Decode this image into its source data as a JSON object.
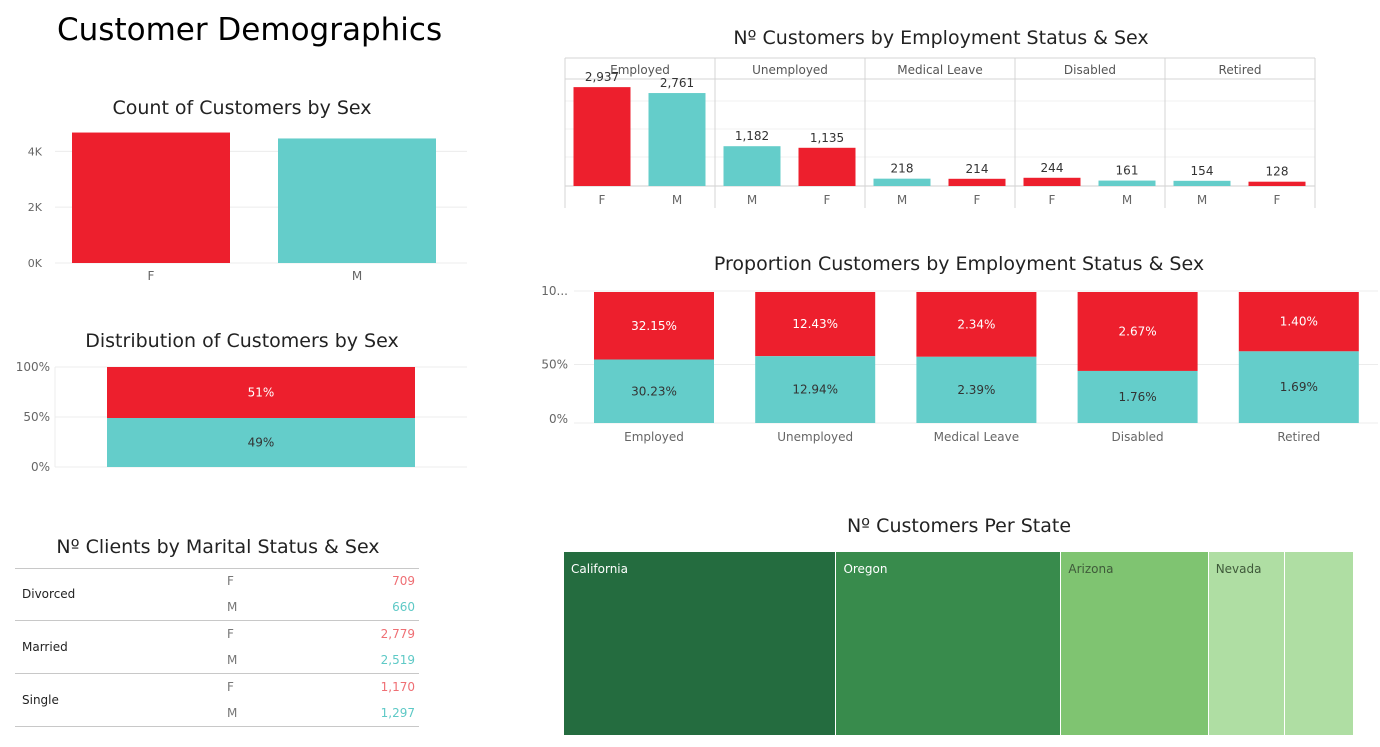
{
  "dashboard_title": "Customer Demographics",
  "colors": {
    "female": "#ed1f2d",
    "male": "#64cdca",
    "female_text": "#ef6f74",
    "male_text": "#5ec9c6"
  },
  "chart_data": [
    {
      "id": "count_by_sex",
      "type": "bar",
      "title": "Count of Customers by Sex",
      "categories": [
        "F",
        "M"
      ],
      "values": [
        4673,
        4461
      ],
      "ylim": [
        0,
        4800
      ],
      "yticks": [
        0,
        2000,
        4000
      ],
      "ytick_labels": [
        "0K",
        "2K",
        "4K"
      ]
    },
    {
      "id": "distribution_by_sex",
      "type": "bar",
      "stacked": true,
      "title": "Distribution of Customers by Sex",
      "ylim": [
        0,
        100
      ],
      "ytick_labels": [
        "0%",
        "50%",
        "100%"
      ],
      "series": [
        {
          "name": "F",
          "values": [
            51
          ],
          "labels": [
            "51%"
          ]
        },
        {
          "name": "M",
          "values": [
            49
          ],
          "labels": [
            "49%"
          ]
        }
      ]
    },
    {
      "id": "count_by_employment_sex",
      "type": "bar",
      "title": "Nº Customers by Employment Status & Sex",
      "groups": [
        {
          "status": "Employed",
          "bars": [
            {
              "sex": "F",
              "value": 2937,
              "label": "2,937"
            },
            {
              "sex": "M",
              "value": 2761,
              "label": "2,761"
            }
          ]
        },
        {
          "status": "Unemployed",
          "bars": [
            {
              "sex": "M",
              "value": 1182,
              "label": "1,182"
            },
            {
              "sex": "F",
              "value": 1135,
              "label": "1,135"
            }
          ]
        },
        {
          "status": "Medical Leave",
          "bars": [
            {
              "sex": "M",
              "value": 218,
              "label": "218"
            },
            {
              "sex": "F",
              "value": 214,
              "label": "214"
            }
          ]
        },
        {
          "status": "Disabled",
          "bars": [
            {
              "sex": "F",
              "value": 244,
              "label": "244"
            },
            {
              "sex": "M",
              "value": 161,
              "label": "161"
            }
          ]
        },
        {
          "status": "Retired",
          "bars": [
            {
              "sex": "M",
              "value": 154,
              "label": "154"
            },
            {
              "sex": "F",
              "value": 128,
              "label": "128"
            }
          ]
        }
      ],
      "ylim": [
        0,
        3000
      ]
    },
    {
      "id": "proportion_by_employment_sex",
      "type": "bar",
      "stacked": true,
      "title": "Proportion Customers by Employment Status & Sex",
      "categories": [
        "Employed",
        "Unemployed",
        "Medical Leave",
        "Disabled",
        "Retired"
      ],
      "ytick_labels": [
        "0%",
        "50%",
        "10..."
      ],
      "series": [
        {
          "name": "F",
          "values": [
            32.15,
            12.43,
            2.34,
            2.67,
            1.4
          ],
          "labels": [
            "32.15%",
            "12.43%",
            "2.34%",
            "2.67%",
            "1.40%"
          ]
        },
        {
          "name": "M",
          "values": [
            30.23,
            12.94,
            2.39,
            1.76,
            1.69
          ],
          "labels": [
            "30.23%",
            "12.94%",
            "2.39%",
            "1.76%",
            "1.69%"
          ]
        }
      ]
    },
    {
      "id": "customers_per_state",
      "type": "treemap",
      "title": "Nº Customers Per State",
      "items": [
        {
          "label": "California",
          "value": 3150,
          "color": "#246c3f"
        },
        {
          "label": "Oregon",
          "value": 2601,
          "color": "#388b4c"
        },
        {
          "label": "Arizona",
          "value": 1703,
          "color": "#7fc471"
        },
        {
          "label": "Nevada",
          "value": 882,
          "color": "#afdea3"
        },
        {
          "label": "",
          "value": 798,
          "color": "#afdea3"
        }
      ]
    }
  ],
  "marital_table": {
    "title": "Nº Clients by Marital Status & Sex",
    "groups": [
      {
        "status": "Divorced",
        "rows": [
          {
            "sex": "F",
            "value": "709"
          },
          {
            "sex": "M",
            "value": "660"
          }
        ]
      },
      {
        "status": "Married",
        "rows": [
          {
            "sex": "F",
            "value": "2,779"
          },
          {
            "sex": "M",
            "value": "2,519"
          }
        ]
      },
      {
        "status": "Single",
        "rows": [
          {
            "sex": "F",
            "value": "1,170"
          },
          {
            "sex": "M",
            "value": "1,297"
          }
        ]
      }
    ]
  }
}
